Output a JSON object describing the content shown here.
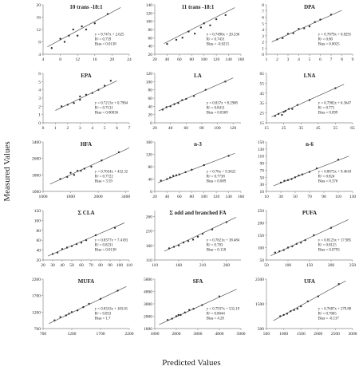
{
  "xlabel": "Predicted Values",
  "ylabel": "Measured Values",
  "chart_data": [
    {
      "type": "scatter",
      "title": "10 trans -18:1",
      "xlim": [
        4,
        24
      ],
      "xticks": [
        4,
        8,
        12,
        16,
        20,
        24
      ],
      "ylim": [
        4,
        20
      ],
      "yticks": [
        4,
        8,
        12,
        16,
        20
      ],
      "x": [
        6,
        8,
        9,
        10,
        11,
        12,
        13,
        14,
        16,
        19
      ],
      "y": [
        6,
        9,
        8,
        10,
        12,
        10,
        13,
        12,
        14,
        17
      ],
      "line": {
        "x": [
          5,
          22
        ],
        "y": [
          6.4,
          19.1
        ]
      },
      "annotations": [
        "y = 0.747x + 2.625",
        "R² = 0.759",
        "Bias = 0.0138"
      ]
    },
    {
      "type": "scatter",
      "title": "11 trans -18:1",
      "xlim": [
        20,
        160
      ],
      "xticks": [
        20,
        40,
        60,
        80,
        100,
        120,
        140,
        160
      ],
      "ylim": [
        20,
        140
      ],
      "yticks": [
        20,
        40,
        60,
        80,
        100,
        120,
        140
      ],
      "x": [
        40,
        55,
        65,
        75,
        85,
        95,
        100,
        110,
        120,
        135
      ],
      "y": [
        45,
        55,
        60,
        75,
        70,
        85,
        95,
        90,
        105,
        115
      ],
      "line": {
        "x": [
          35,
          150
        ],
        "y": [
          46,
          133
        ]
      },
      "annotations": [
        "y = 0.7496x + 20.336",
        "R² = 0.7431",
        "Bias = -0.0215"
      ]
    },
    {
      "type": "scatter",
      "title": "DPA",
      "xlim": [
        1,
        9
      ],
      "xticks": [
        1,
        2,
        3,
        4,
        5,
        6,
        7,
        8,
        9
      ],
      "ylim": [
        0,
        8
      ],
      "yticks": [
        0,
        1,
        2,
        3,
        4,
        5,
        6,
        7,
        8
      ],
      "x": [
        2,
        2.5,
        3,
        3.5,
        4,
        4.5,
        5,
        5.5,
        6,
        7
      ],
      "y": [
        2.4,
        2.6,
        3.3,
        3.4,
        4.1,
        4.2,
        4.5,
        5.2,
        5.6,
        6.4
      ],
      "line": {
        "x": [
          1.5,
          8
        ],
        "y": [
          2,
          7.1
        ]
      },
      "annotations": [
        "y = 0.7879x + 0.8291",
        "R² = 0.80",
        "Bias = 0.0025"
      ]
    },
    {
      "type": "scatter",
      "title": "EPA",
      "xlim": [
        0,
        7
      ],
      "xticks": [
        0,
        1,
        2,
        3,
        4,
        5,
        6,
        7
      ],
      "ylim": [
        0,
        6
      ],
      "yticks": [
        0,
        1,
        2,
        3,
        4,
        5,
        6
      ],
      "x": [
        1.5,
        2,
        2.5,
        3,
        3,
        3.5,
        4,
        4.5,
        5,
        5.5
      ],
      "y": [
        2,
        2.2,
        2.4,
        2.8,
        3.2,
        3.4,
        3.6,
        4,
        4.5,
        5.1
      ],
      "line": {
        "x": [
          1,
          6
        ],
        "y": [
          1.5,
          5.1
        ]
      },
      "annotations": [
        "y = 0.7213x + 0.7904",
        "R² = 0.7131",
        "Bias = 0.00036"
      ]
    },
    {
      "type": "scatter",
      "title": "LA",
      "xlim": [
        20,
        130
      ],
      "xticks": [
        20,
        40,
        60,
        80,
        100,
        120
      ],
      "ylim": [
        0,
        120
      ],
      "yticks": [
        0,
        20,
        40,
        60,
        80,
        100,
        120
      ],
      "x": [
        30,
        35,
        40,
        45,
        50,
        55,
        60,
        70,
        85,
        110
      ],
      "y": [
        32,
        38,
        40,
        45,
        48,
        55,
        58,
        65,
        80,
        100
      ],
      "line": {
        "x": [
          25,
          120
        ],
        "y": [
          29,
          109
        ]
      },
      "annotations": [
        "y = 0.837x + 8.2908",
        "R² = 0.8411",
        "Bias = 0.0369"
      ]
    },
    {
      "type": "scatter",
      "title": "LNA",
      "xlim": [
        15,
        65
      ],
      "xticks": [
        15,
        25,
        35,
        45,
        55,
        65
      ],
      "ylim": [
        15,
        65
      ],
      "yticks": [
        15,
        25,
        35,
        45,
        55,
        65
      ],
      "x": [
        20,
        22,
        24,
        25,
        26,
        28,
        30,
        33,
        40,
        55
      ],
      "y": [
        22,
        24,
        23,
        26,
        27,
        29,
        29,
        33,
        38,
        50
      ],
      "line": {
        "x": [
          18,
          60
        ],
        "y": [
          21,
          54
        ]
      },
      "annotations": [
        "y = 0.7982x + 6.3647",
        "R² = 0.771",
        "Bias = 0.099"
      ]
    },
    {
      "type": "scatter",
      "title": "HFA",
      "xlim": [
        1000,
        3500
      ],
      "xticks": [
        1000,
        1800,
        2600,
        3400
      ],
      "ylim": [
        1000,
        3400
      ],
      "yticks": [
        1000,
        1800,
        2600,
        3400
      ],
      "x": [
        1500,
        1700,
        1800,
        1900,
        2000,
        2100,
        2200,
        2400,
        2700,
        3200
      ],
      "y": [
        1600,
        1700,
        1900,
        1800,
        2000,
        2000,
        2100,
        2200,
        2500,
        2900
      ],
      "line": {
        "x": [
          1200,
          3500
        ],
        "y": [
          1350,
          3110
        ]
      },
      "annotations": [
        "y = 0.7654x + 432.32",
        "R² = 0.7722",
        "Bias = 3.59"
      ]
    },
    {
      "type": "scatter",
      "title": "n-3",
      "xlim": [
        20,
        160
      ],
      "xticks": [
        20,
        40,
        60,
        80,
        100,
        120,
        140,
        160
      ],
      "ylim": [
        0,
        160
      ],
      "yticks": [
        0,
        40,
        80,
        120,
        160
      ],
      "x": [
        30,
        40,
        45,
        50,
        55,
        60,
        70,
        80,
        100,
        140
      ],
      "y": [
        35,
        40,
        45,
        50,
        52,
        55,
        62,
        70,
        85,
        115
      ],
      "line": {
        "x": [
          25,
          150
        ],
        "y": [
          28,
          123
        ]
      },
      "annotations": [
        "y = 0.76x + 9.3622",
        "R² = 0.7738",
        "Bias = 0.089"
      ]
    },
    {
      "type": "scatter",
      "title": "n-6",
      "xlim": [
        10,
        130
      ],
      "xticks": [
        10,
        30,
        50,
        70,
        90,
        110,
        130
      ],
      "ylim": [
        10,
        150
      ],
      "yticks": [
        10,
        30,
        50,
        70,
        90,
        110,
        130,
        150
      ],
      "x": [
        30,
        35,
        40,
        45,
        50,
        55,
        60,
        70,
        80,
        110
      ],
      "y": [
        35,
        40,
        42,
        45,
        50,
        55,
        58,
        65,
        75,
        100
      ],
      "line": {
        "x": [
          20,
          125
        ],
        "y": [
          26,
          110
        ]
      },
      "annotations": [
        "y = 0.8073x + 9.4618",
        "R² = 0.824",
        "Bias = 0.376"
      ]
    },
    {
      "type": "scatter",
      "title": "Σ CLA",
      "xlim": [
        20,
        110
      ],
      "xticks": [
        20,
        30,
        40,
        50,
        60,
        70,
        80,
        90,
        100,
        110
      ],
      "ylim": [
        20,
        120
      ],
      "yticks": [
        20,
        40,
        60,
        80,
        100,
        120
      ],
      "x": [
        30,
        35,
        40,
        45,
        50,
        55,
        60,
        65,
        75,
        95
      ],
      "y": [
        32,
        35,
        42,
        45,
        48,
        52,
        55,
        60,
        70,
        85
      ],
      "line": {
        "x": [
          25,
          105
        ],
        "y": [
          28,
          95
        ]
      },
      "annotations": [
        "y = 0.8377x + 7.4183",
        "R² = 0.8231",
        "Bias = 0.0138"
      ]
    },
    {
      "type": "scatter",
      "title": "Σ  odd and branched FA",
      "xlim": [
        110,
        290
      ],
      "xticks": [
        110,
        160,
        210,
        260
      ],
      "ylim": [
        110,
        280
      ],
      "yticks": [
        110,
        160,
        210,
        260
      ],
      "x": [
        140,
        150,
        160,
        170,
        180,
        190,
        200,
        210,
        230,
        260
      ],
      "y": [
        150,
        155,
        160,
        170,
        175,
        180,
        190,
        200,
        215,
        240
      ],
      "line": {
        "x": [
          130,
          280
        ],
        "y": [
          140,
          257
        ]
      },
      "annotations": [
        "y = 0.7821x + 38.484",
        "R² = 0.783",
        "Bias = 0.118"
      ]
    },
    {
      "type": "scatter",
      "title": "PUFA",
      "xlim": [
        50,
        250
      ],
      "xticks": [
        50,
        100,
        150,
        200,
        250
      ],
      "ylim": [
        50,
        250
      ],
      "yticks": [
        50,
        100,
        150,
        200,
        250
      ],
      "x": [
        70,
        80,
        90,
        100,
        110,
        120,
        130,
        140,
        160,
        200
      ],
      "y": [
        80,
        85,
        90,
        100,
        105,
        115,
        120,
        130,
        150,
        180
      ],
      "line": {
        "x": [
          60,
          240
        ],
        "y": [
          67,
          213
        ]
      },
      "annotations": [
        "y = 0.8123x + 17.985",
        "R² = 0.8125",
        "Bias = 0.0793"
      ]
    },
    {
      "type": "scatter",
      "title": "MUFA",
      "xlim": [
        700,
        2200
      ],
      "xticks": [
        700,
        1200,
        1700,
        2200
      ],
      "ylim": [
        700,
        2200
      ],
      "yticks": [
        700,
        1200,
        1700,
        2200
      ],
      "x": [
        900,
        1000,
        1100,
        1150,
        1200,
        1300,
        1400,
        1500,
        1700,
        2000
      ],
      "y": [
        950,
        1050,
        1100,
        1150,
        1200,
        1250,
        1350,
        1450,
        1600,
        1850
      ],
      "line": {
        "x": [
          800,
          2150
        ],
        "y": [
          850,
          1975
        ]
      },
      "annotations": [
        "y = 0.8333x + 183.01",
        "R² = 0.853",
        "Bias = 1.7"
      ]
    },
    {
      "type": "scatter",
      "title": "SFA",
      "xlim": [
        1800,
        5800
      ],
      "xticks": [
        1800,
        2800,
        3800,
        4800,
        5800
      ],
      "ylim": [
        1800,
        5800
      ],
      "yticks": [
        1800,
        2800,
        3800,
        4800,
        5800
      ],
      "x": [
        2400,
        2600,
        2800,
        2900,
        3000,
        3200,
        3400,
        3600,
        4000,
        4800
      ],
      "y": [
        2500,
        2600,
        2800,
        2900,
        2900,
        3100,
        3300,
        3400,
        3700,
        4400
      ],
      "line": {
        "x": [
          2000,
          5600
        ],
        "y": [
          2120,
          4980
        ]
      },
      "annotations": [
        "y = 0.7937x + 532.19",
        "R² = 0.8044",
        "Bias = 4.28"
      ]
    },
    {
      "type": "scatter",
      "title": "UFA",
      "xlim": [
        500,
        3000
      ],
      "xticks": [
        500,
        1000,
        1500,
        2000,
        2500,
        3000
      ],
      "ylim": [
        500,
        2500
      ],
      "yticks": [
        500,
        1500,
        2500
      ],
      "x": [
        900,
        1000,
        1100,
        1200,
        1300,
        1400,
        1500,
        1700,
        2000,
        2600
      ],
      "y": [
        1000,
        1050,
        1100,
        1200,
        1250,
        1300,
        1400,
        1600,
        1800,
        2300
      ],
      "line": {
        "x": [
          700,
          2800
        ],
        "y": [
          820,
          2430
        ]
      },
      "annotations": [
        "y = 0.7687x + 279.88",
        "R² = 0.7065",
        "Bias = -0.137"
      ]
    }
  ]
}
